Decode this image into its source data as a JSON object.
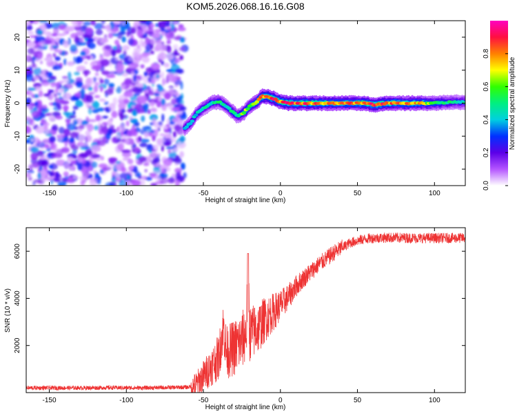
{
  "title": "KOM5.2026.068.16.16.G08",
  "chart_data": [
    {
      "type": "heatmap",
      "title": "KOM5.2026.068.16.16.G08",
      "xlabel": "Height of straight line (km)",
      "ylabel": "Frequency (Hz)",
      "xlim": [
        -165,
        120
      ],
      "ylim": [
        -25,
        25
      ],
      "xticks": [
        -150,
        -100,
        -50,
        0,
        50,
        100
      ],
      "yticks": [
        -20,
        -10,
        0,
        10,
        20
      ],
      "colorbar": {
        "label": "Normalized spectral amplitude",
        "range": [
          0,
          1
        ],
        "ticks": [
          0.0,
          0.2,
          0.4,
          0.6,
          0.8
        ],
        "tick_labels": [
          "0.0",
          "0.2",
          "0.4",
          "0.6",
          "0.8"
        ],
        "colormap": [
          "#ffffff",
          "#b455ff",
          "#5b00e8",
          "#0030ff",
          "#00d0e0",
          "#00f080",
          "#30ff00",
          "#ffff00",
          "#ff8000",
          "#ff1040",
          "#ff00c0"
        ]
      },
      "noise_region_x": [
        -165,
        -62
      ],
      "ridge": {
        "x": [
          -62,
          -58,
          -55,
          -50,
          -45,
          -40,
          -35,
          -30,
          -28,
          -24,
          -20,
          -15,
          -12,
          -8,
          -5,
          -2,
          0,
          5,
          10,
          20,
          30,
          40,
          50,
          55,
          60,
          70,
          80,
          90,
          100,
          110,
          120
        ],
        "freq_hz": [
          -7.5,
          -6,
          -3.5,
          -1.5,
          0,
          0.5,
          -1,
          -3,
          -4,
          -3,
          -1,
          0.5,
          2,
          2,
          1.5,
          0.8,
          0.5,
          0,
          0,
          0,
          0,
          0,
          0,
          0,
          -0.5,
          0,
          0,
          0,
          0,
          0.3,
          0.3
        ],
        "amplitude": [
          0.35,
          0.38,
          0.4,
          0.42,
          0.45,
          0.45,
          0.42,
          0.48,
          0.45,
          0.6,
          0.55,
          0.65,
          0.78,
          0.82,
          0.85,
          0.8,
          0.8,
          0.82,
          0.8,
          0.78,
          0.75,
          0.72,
          0.78,
          0.8,
          0.82,
          0.78,
          0.72,
          0.7,
          0.55,
          0.45,
          0.4
        ]
      }
    },
    {
      "type": "line",
      "xlabel": "Height of straight line (km)",
      "ylabel": "SNR (10 * v/v)",
      "xlim": [
        -165,
        120
      ],
      "ylim": [
        0,
        7000
      ],
      "xticks": [
        -150,
        -100,
        -50,
        0,
        50,
        100
      ],
      "yticks": [
        2000,
        4000,
        6000
      ],
      "color": "#ee3333",
      "series": [
        {
          "name": "SNR",
          "x": [
            -165,
            -150,
            -130,
            -110,
            -90,
            -70,
            -60,
            -55,
            -50,
            -45,
            -40,
            -37,
            -35,
            -30,
            -25,
            -22,
            -21,
            -20,
            -15,
            -10,
            -5,
            0,
            5,
            10,
            15,
            20,
            25,
            30,
            35,
            40,
            45,
            50,
            55,
            60,
            70,
            80,
            90,
            100,
            110,
            120
          ],
          "y": [
            200,
            200,
            200,
            210,
            200,
            220,
            230,
            300,
            700,
            1100,
            1500,
            2800,
            1700,
            1900,
            2200,
            2600,
            5900,
            2500,
            2700,
            3100,
            3400,
            3700,
            4050,
            4500,
            4850,
            5150,
            5450,
            5700,
            5950,
            6150,
            6350,
            6450,
            6520,
            6560,
            6580,
            6570,
            6560,
            6560,
            6560,
            6560
          ]
        }
      ]
    }
  ]
}
